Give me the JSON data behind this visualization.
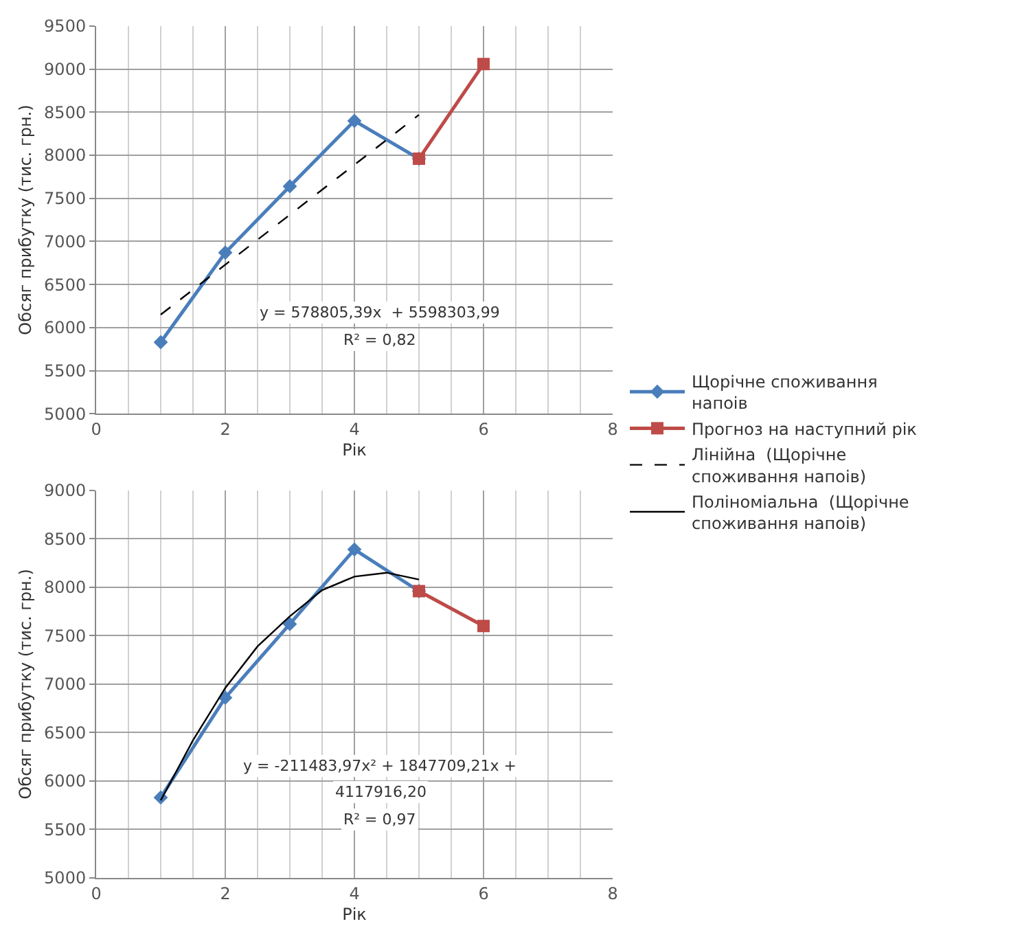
{
  "chart_data": [
    {
      "type": "line",
      "xlabel": "Рік",
      "ylabel": "Обсяг прибутку (тис. грн.)",
      "xlim": [
        0,
        8
      ],
      "xticks": [
        0,
        2,
        4,
        6,
        8
      ],
      "ylim": [
        5000,
        9500
      ],
      "yticks": [
        5000,
        5500,
        6000,
        6500,
        7000,
        7500,
        8000,
        8500,
        9000,
        9500
      ],
      "grid": true,
      "legend": "right",
      "series": [
        {
          "name": "Щорічне споживання напоів",
          "color": "#4a7ebb",
          "x": [
            1,
            2,
            3,
            4,
            5
          ],
          "values": [
            5830,
            6870,
            7640,
            8400,
            7960
          ],
          "marker": "diamond",
          "line_style": "solid"
        },
        {
          "name": "Прогноз на наступний рік",
          "color": "#be4b48",
          "x": [
            5,
            6
          ],
          "values": [
            7960,
            9060
          ],
          "marker": "square",
          "line_style": "solid"
        },
        {
          "name": "Лінійна  (Щорічне споживання напоів)",
          "color": "#000000",
          "x": [
            1,
            5
          ],
          "values": [
            6150,
            8470
          ],
          "marker": "none",
          "line_style": "dashed"
        }
      ],
      "annotations": [
        "y = 578805,39x  + 5598303,99",
        "R² = 0,82"
      ]
    },
    {
      "type": "line",
      "xlabel": "Рік",
      "ylabel": "Обсяг прибутку (тис. грн.)",
      "xlim": [
        0,
        8
      ],
      "xticks": [
        0,
        2,
        4,
        6,
        8
      ],
      "ylim": [
        5000,
        9000
      ],
      "yticks": [
        5000,
        5500,
        6000,
        6500,
        7000,
        7500,
        8000,
        8500,
        9000
      ],
      "grid": true,
      "legend": "right",
      "series": [
        {
          "color": "#4a7ebb",
          "x": [
            1,
            2,
            3,
            4,
            5
          ],
          "values": [
            5830,
            6860,
            7620,
            8390,
            7960
          ],
          "marker": "diamond",
          "line_style": "solid"
        },
        {
          "color": "#be4b48",
          "x": [
            5,
            6
          ],
          "values": [
            7960,
            7600
          ],
          "marker": "square",
          "line_style": "solid"
        },
        {
          "name": "Поліноміальна  (Щорічне споживання напоів)",
          "color": "#000000",
          "x": [
            1,
            1.5,
            2,
            2.5,
            3,
            3.5,
            4,
            4.5,
            5
          ],
          "values": [
            5800,
            6420,
            6960,
            7390,
            7700,
            7970,
            8110,
            8150,
            8080
          ],
          "marker": "none",
          "line_style": "solid"
        }
      ],
      "annotations": [
        "y = -211483,97x² + 1847709,21x +",
        "4117916,20",
        "R² = 0,97"
      ]
    }
  ]
}
